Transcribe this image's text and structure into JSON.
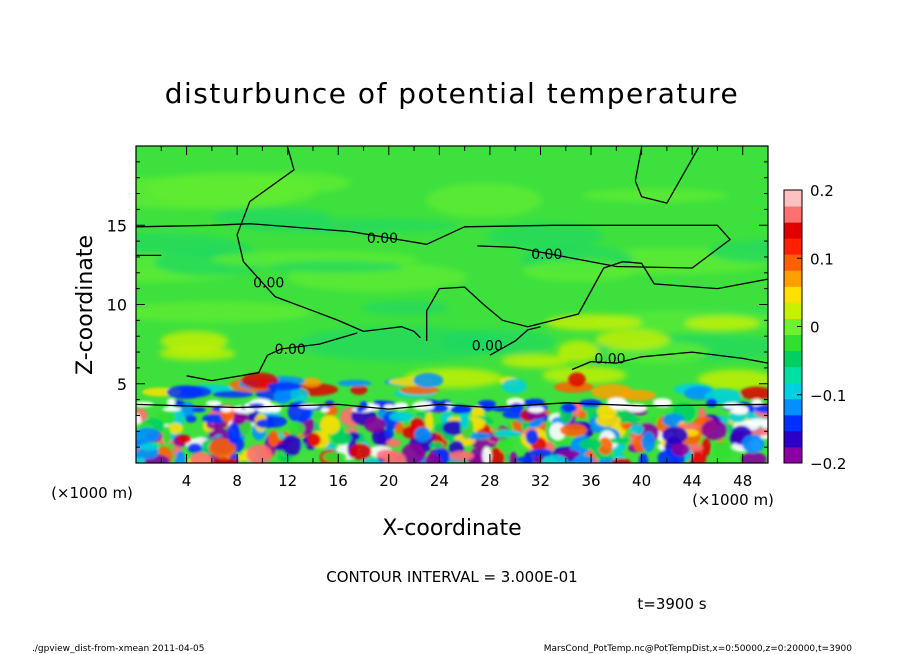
{
  "chart_data": {
    "type": "heatmap",
    "title": "disturbunce of potential temperature",
    "xlabel": "X-coordinate",
    "ylabel": "Z-coordinate",
    "x_unit": "(×1000 m)",
    "z_unit": "(×1000 m)",
    "xlim": [
      0,
      50
    ],
    "zlim": [
      0,
      20
    ],
    "x_ticks": [
      4,
      8,
      12,
      16,
      20,
      24,
      28,
      32,
      36,
      40,
      44,
      48
    ],
    "x_tick_labels": [
      "4",
      "8",
      "12",
      "16",
      "20",
      "24",
      "28",
      "32",
      "36",
      "40",
      "44",
      "48"
    ],
    "z_ticks": [
      5,
      10,
      15
    ],
    "z_tick_labels": [
      "5",
      "10",
      "15"
    ],
    "colorbar": {
      "range": [
        -0.2,
        0.2
      ],
      "ticks": [
        0.2,
        0.1,
        0,
        -0.1,
        -0.2
      ],
      "tick_labels": [
        "0.2",
        "0.1",
        "0",
        "−0.1",
        "−0.2"
      ],
      "colors": [
        "#8B00A0",
        "#2a00c8",
        "#0030ff",
        "#0090ff",
        "#00d0e0",
        "#00e0a0",
        "#00d060",
        "#30e030",
        "#70f030",
        "#c8f000",
        "#ffe000",
        "#ffa000",
        "#ff6000",
        "#ff2000",
        "#e00000",
        "#ff7070",
        "#ffc0c0"
      ]
    },
    "contour_labels": [
      {
        "text": "0.00",
        "x": 19.5,
        "z": 14.2
      },
      {
        "text": "0.00",
        "x": 32.5,
        "z": 13.2
      },
      {
        "text": "0.00",
        "x": 10.5,
        "z": 11.4
      },
      {
        "text": "0.00",
        "x": 12.2,
        "z": 7.2
      },
      {
        "text": "0.00",
        "x": 27.8,
        "z": 7.4
      },
      {
        "text": "0.00",
        "x": 37.5,
        "z": 6.6
      }
    ],
    "contour_interval": "CONTOUR INTERVAL = 3.000E-01",
    "time": "t=3900 s",
    "footer_left": "./gpview_dist-from-xmean  2011-04-05",
    "footer_right": "MarsCond_PotTemp.nc@PotTempDist,x=0:50000,z=0:20000,t=3900"
  }
}
